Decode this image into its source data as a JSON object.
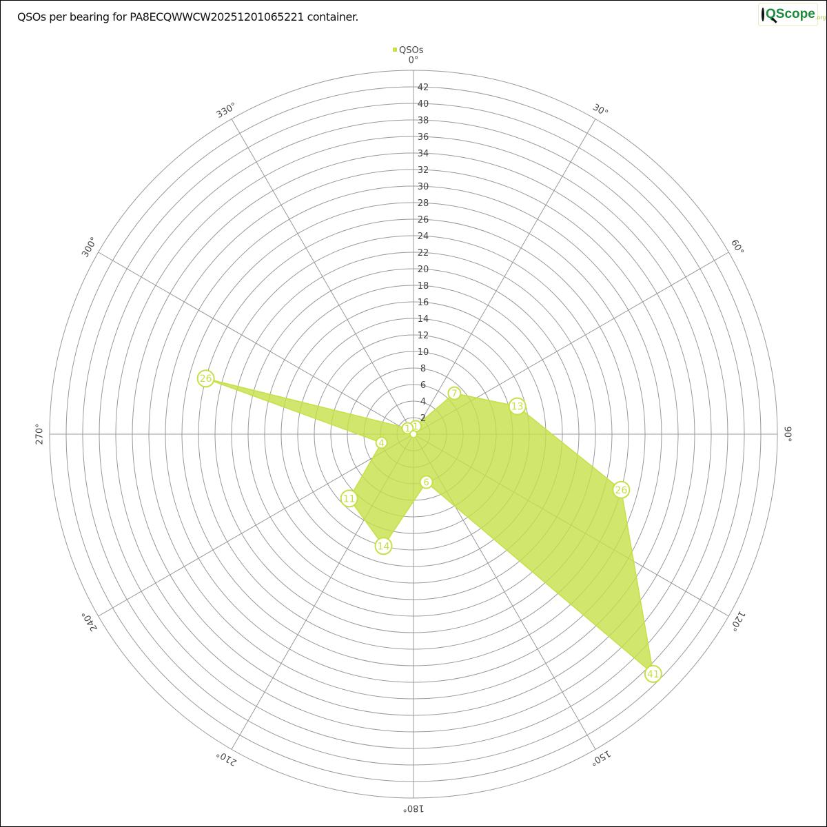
{
  "title": "QSOs per bearing for PA8ECQWWCW20251201065221 container.",
  "logo": {
    "text": "QScope",
    "suffix": ".org"
  },
  "chart_data": {
    "type": "radar",
    "title": "QSOs per bearing for PA8ECQWWCW20251201065221 container.",
    "legend": {
      "entries": [
        "QSOs"
      ],
      "placement": "top"
    },
    "angle_ticks": [
      "0°",
      "30°",
      "60°",
      "90°",
      "120°",
      "150°",
      "180°",
      "210°",
      "240°",
      "270°",
      "300°",
      "330°"
    ],
    "radial_ticks": [
      2,
      4,
      6,
      8,
      10,
      12,
      14,
      16,
      18,
      20,
      22,
      24,
      26,
      28,
      30,
      32,
      34,
      36,
      38,
      40,
      42
    ],
    "rlim": [
      0,
      44
    ],
    "grid": true,
    "series": [
      {
        "name": "QSOs",
        "color": "#c6e048",
        "bearings": [
          15,
          45,
          75,
          105,
          135,
          165,
          195,
          225,
          255,
          285,
          315,
          345
        ],
        "values": [
          1,
          7,
          13,
          26,
          41,
          6,
          14,
          11,
          4,
          26,
          1,
          0
        ]
      }
    ]
  }
}
